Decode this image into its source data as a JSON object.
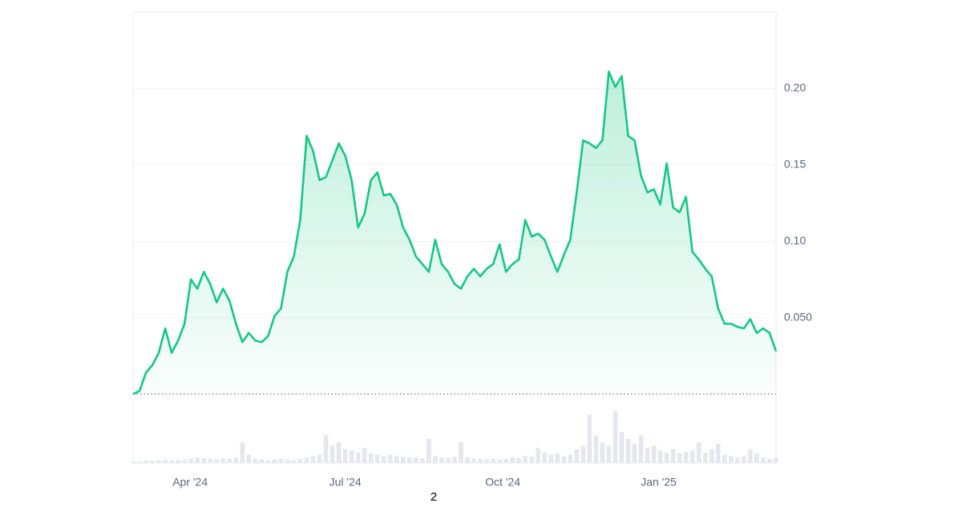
{
  "chart_data": {
    "type": "line",
    "values": [
      0.0,
      0.002,
      0.014,
      0.019,
      0.027,
      0.043,
      0.027,
      0.035,
      0.046,
      0.075,
      0.069,
      0.08,
      0.072,
      0.06,
      0.069,
      0.061,
      0.046,
      0.034,
      0.04,
      0.035,
      0.034,
      0.038,
      0.051,
      0.056,
      0.08,
      0.09,
      0.114,
      0.169,
      0.159,
      0.14,
      0.142,
      0.153,
      0.164,
      0.156,
      0.14,
      0.109,
      0.118,
      0.14,
      0.145,
      0.13,
      0.131,
      0.124,
      0.109,
      0.101,
      0.09,
      0.085,
      0.08,
      0.101,
      0.085,
      0.08,
      0.072,
      0.069,
      0.077,
      0.082,
      0.077,
      0.082,
      0.085,
      0.098,
      0.08,
      0.085,
      0.088,
      0.114,
      0.103,
      0.105,
      0.101,
      0.09,
      0.08,
      0.091,
      0.101,
      0.132,
      0.166,
      0.164,
      0.161,
      0.166,
      0.211,
      0.201,
      0.208,
      0.169,
      0.166,
      0.143,
      0.132,
      0.134,
      0.124,
      0.151,
      0.122,
      0.119,
      0.129,
      0.093,
      0.088,
      0.082,
      0.077,
      0.056,
      0.046,
      0.046,
      0.044,
      0.043,
      0.049,
      0.04,
      0.043,
      0.04,
      0.028
    ],
    "color": "#16c784",
    "volume": [
      2,
      2,
      3,
      3,
      4,
      5,
      4,
      4,
      5,
      6,
      8,
      7,
      6,
      5,
      7,
      6,
      8,
      30,
      12,
      6,
      5,
      4,
      5,
      6,
      5,
      4,
      6,
      8,
      10,
      12,
      40,
      25,
      30,
      20,
      18,
      15,
      22,
      14,
      12,
      10,
      12,
      10,
      9,
      8,
      8,
      7,
      35,
      10,
      8,
      7,
      9,
      30,
      8,
      6,
      6,
      5,
      6,
      5,
      6,
      8,
      7,
      10,
      9,
      22,
      15,
      12,
      14,
      10,
      12,
      20,
      25,
      70,
      40,
      30,
      25,
      75,
      45,
      35,
      28,
      40,
      22,
      25,
      18,
      15,
      20,
      14,
      16,
      18,
      30,
      15,
      20,
      28,
      12,
      10,
      8,
      10,
      20,
      14,
      8,
      6,
      8
    ],
    "volume_color": "#e4e7ee",
    "y2lim": [
      0,
      100
    ],
    "xlim": [
      0,
      100
    ],
    "xticks": [
      {
        "value": 8.875,
        "label": "Apr '24"
      },
      {
        "value": 33,
        "label": "Jul '24"
      },
      {
        "value": 57.5,
        "label": "Oct '24"
      },
      {
        "value": 81.75,
        "label": "Jan '25"
      }
    ],
    "ylim": [
      0,
      0.25
    ],
    "yticks": [
      {
        "value": 0.05,
        "label": "0.050"
      },
      {
        "value": 0.1,
        "label": "0.10"
      },
      {
        "value": 0.15,
        "label": "0.15"
      },
      {
        "value": 0.2,
        "label": "0.20"
      }
    ],
    "grid": true,
    "annotations": [
      "2"
    ]
  }
}
